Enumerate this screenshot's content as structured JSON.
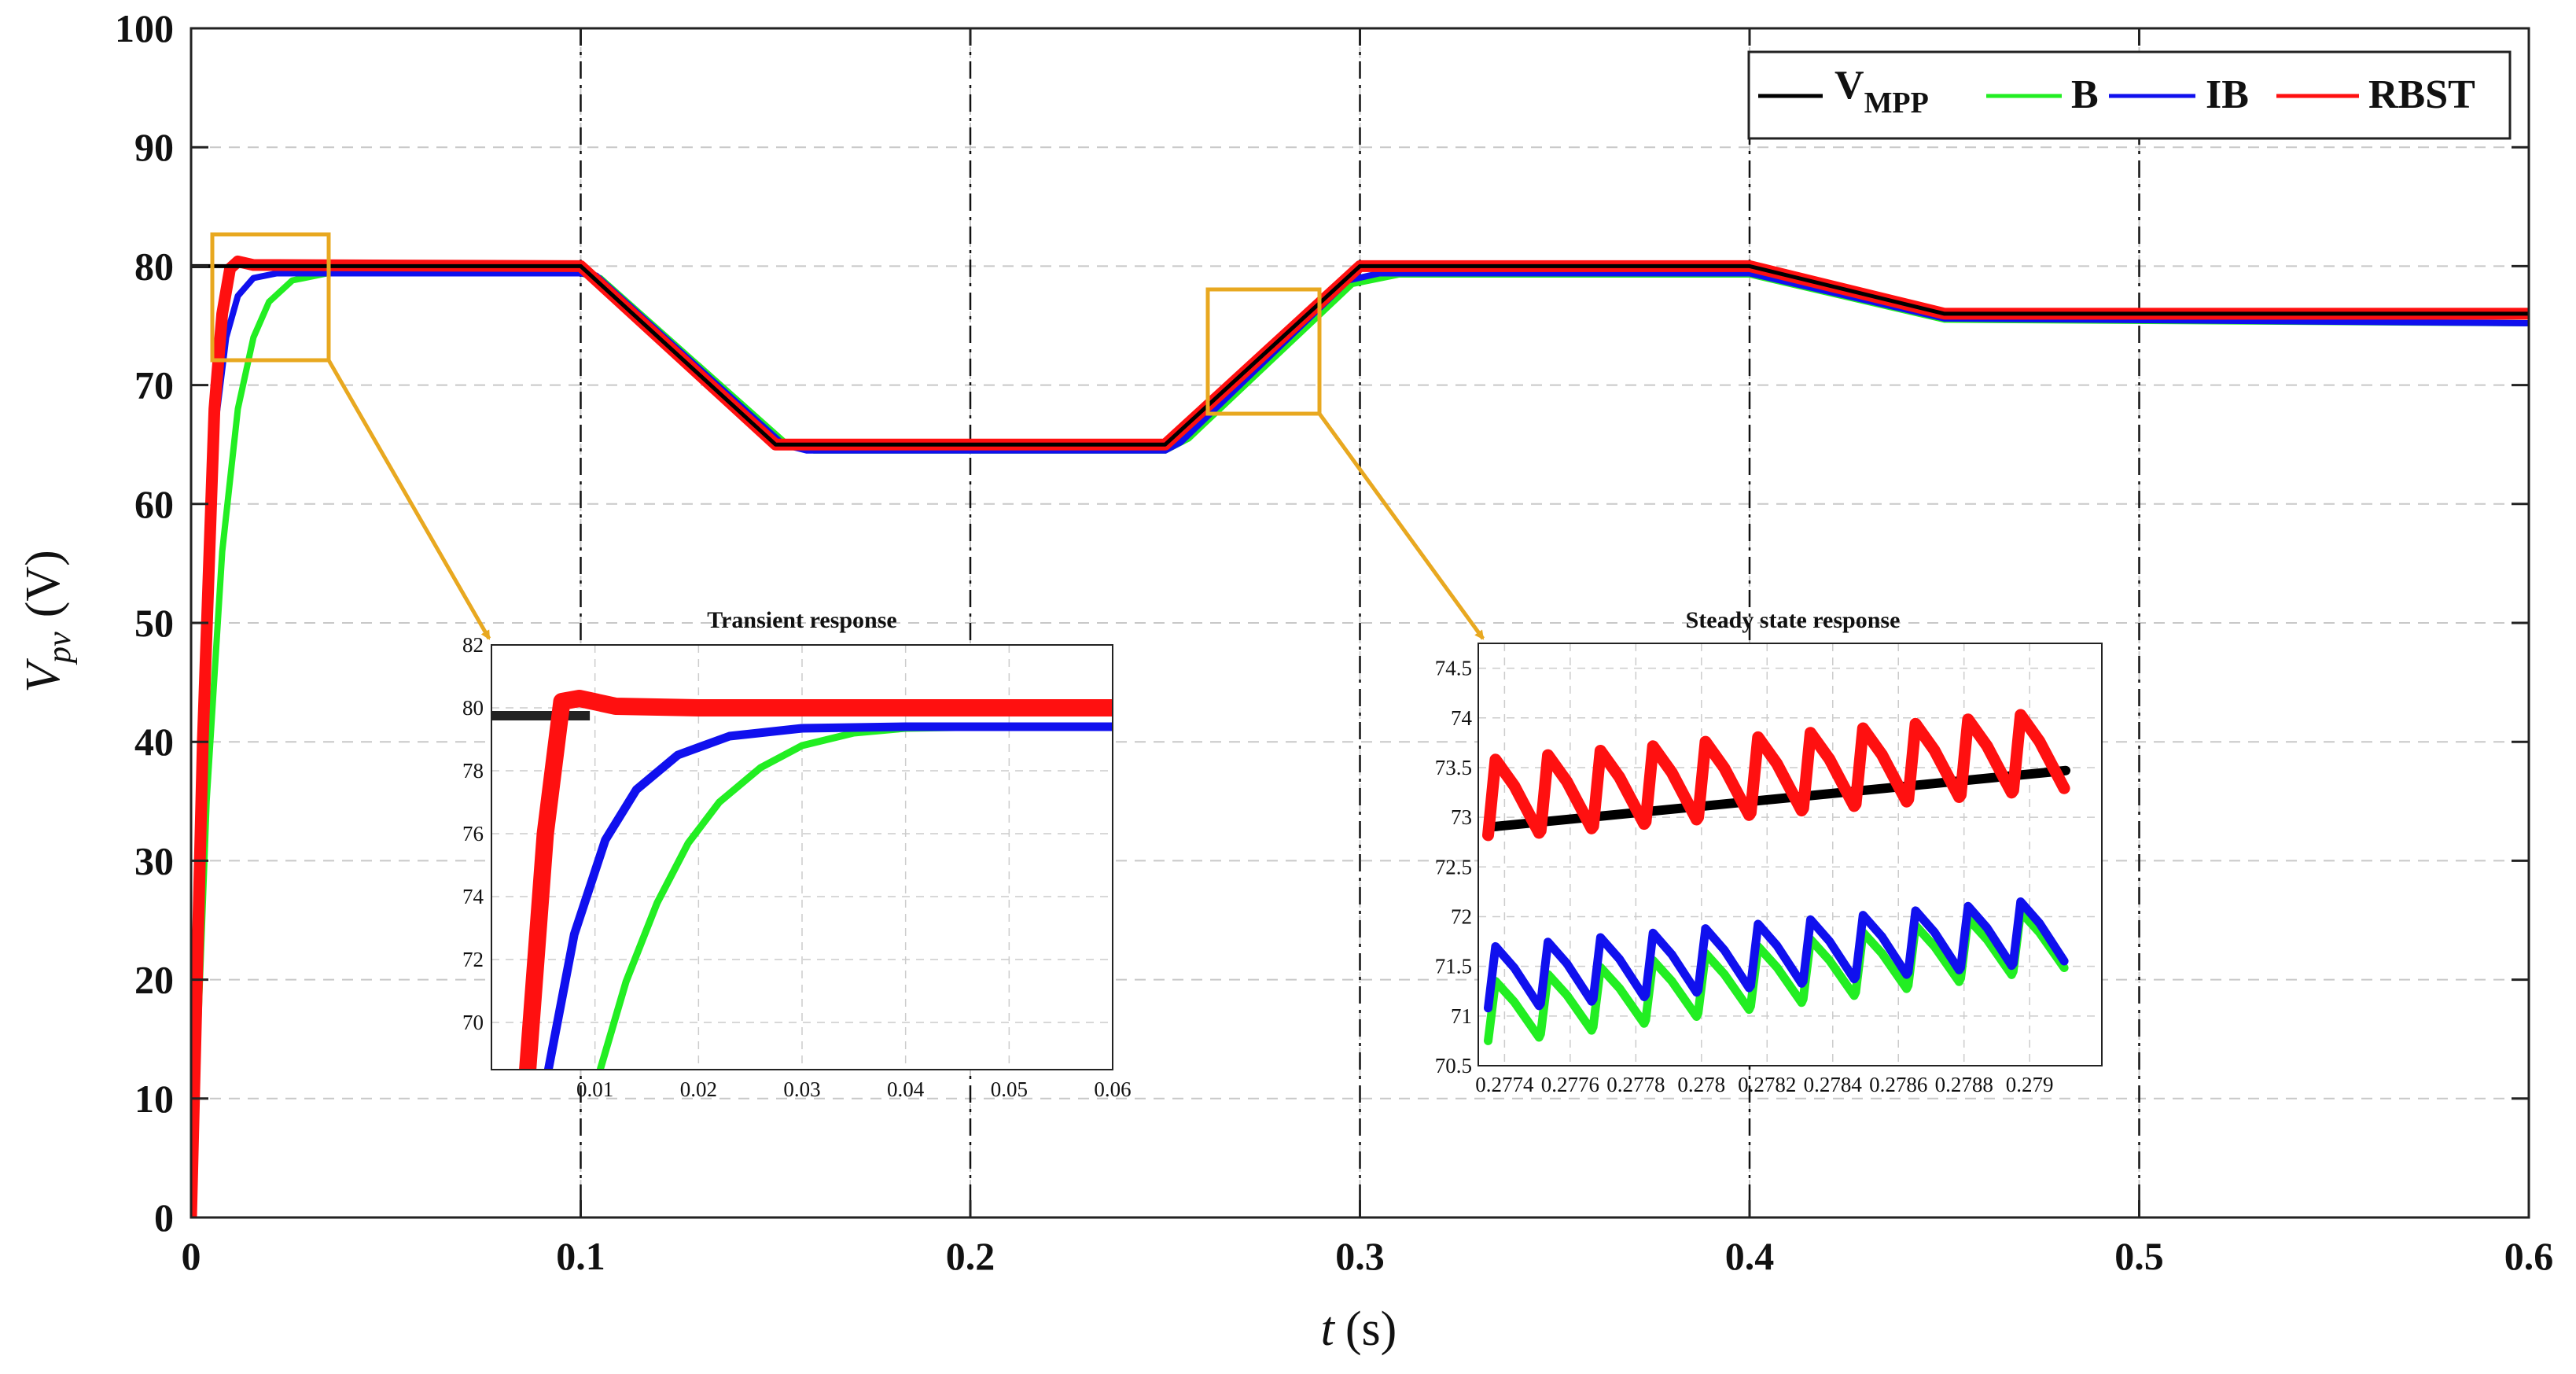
{
  "chart_data": {
    "type": "line",
    "main": {
      "xlabel_var": "t",
      "xlabel_unit": "(s)",
      "ylabel_var": "V",
      "ylabel_sub": "pv",
      "ylabel_unit": "(V)",
      "xlim": [
        0,
        0.6
      ],
      "ylim": [
        0,
        100
      ],
      "x_ticks": [
        "0",
        "0.1",
        "0.2",
        "0.3",
        "0.4",
        "0.5",
        "0.6"
      ],
      "y_ticks": [
        "0",
        "10",
        "20",
        "30",
        "40",
        "50",
        "60",
        "70",
        "80",
        "90",
        "100"
      ],
      "event_lines_x": [
        0.1,
        0.2,
        0.3,
        0.4,
        0.5
      ],
      "grid": true,
      "legend_position": "top-right",
      "series": [
        {
          "name": "VMPP",
          "color": "#000000",
          "points": [
            [
              0,
              80
            ],
            [
              0.1,
              80
            ],
            [
              0.15,
              65
            ],
            [
              0.25,
              65
            ],
            [
              0.3,
              80
            ],
            [
              0.4,
              80
            ],
            [
              0.45,
              76
            ],
            [
              0.6,
              76
            ]
          ]
        },
        {
          "name": "B",
          "color": "#22ee22",
          "points": [
            [
              0,
              0
            ],
            [
              0.004,
              35
            ],
            [
              0.008,
              56
            ],
            [
              0.012,
              68
            ],
            [
              0.016,
              74
            ],
            [
              0.02,
              77
            ],
            [
              0.026,
              78.8
            ],
            [
              0.035,
              79.4
            ],
            [
              0.1,
              79.4
            ],
            [
              0.105,
              79
            ],
            [
              0.153,
              65
            ],
            [
              0.16,
              64.5
            ],
            [
              0.25,
              64.5
            ],
            [
              0.256,
              65.5
            ],
            [
              0.298,
              78.5
            ],
            [
              0.31,
              79.3
            ],
            [
              0.4,
              79.3
            ],
            [
              0.45,
              75.5
            ],
            [
              0.6,
              75.2
            ]
          ]
        },
        {
          "name": "IB",
          "color": "#1010ee",
          "points": [
            [
              0,
              0
            ],
            [
              0.003,
              40
            ],
            [
              0.006,
              66
            ],
            [
              0.009,
              74
            ],
            [
              0.012,
              77.5
            ],
            [
              0.016,
              79
            ],
            [
              0.022,
              79.4
            ],
            [
              0.1,
              79.4
            ],
            [
              0.104,
              79.2
            ],
            [
              0.152,
              65
            ],
            [
              0.158,
              64.5
            ],
            [
              0.25,
              64.5
            ],
            [
              0.254,
              65.2
            ],
            [
              0.297,
              78.8
            ],
            [
              0.305,
              79.4
            ],
            [
              0.4,
              79.4
            ],
            [
              0.45,
              75.6
            ],
            [
              0.6,
              75.2
            ]
          ]
        },
        {
          "name": "RBST",
          "color": "#ff1010",
          "points": [
            [
              0,
              0
            ],
            [
              0.003,
              40
            ],
            [
              0.006,
              68
            ],
            [
              0.008,
              76
            ],
            [
              0.01,
              79.8
            ],
            [
              0.012,
              80.4
            ],
            [
              0.016,
              80.1
            ],
            [
              0.1,
              80
            ],
            [
              0.15,
              65
            ],
            [
              0.25,
              65
            ],
            [
              0.3,
              80
            ],
            [
              0.4,
              80
            ],
            [
              0.45,
              76
            ],
            [
              0.6,
              76
            ]
          ]
        }
      ]
    },
    "inset_transient": {
      "title": "Transient response",
      "xlim": [
        0,
        0.06
      ],
      "ylim": [
        68.5,
        82
      ],
      "x_ticks": [
        "0.01",
        "0.02",
        "0.03",
        "0.04",
        "0.05",
        "0.06"
      ],
      "x_tick_values": [
        0.01,
        0.02,
        0.03,
        0.04,
        0.05,
        0.06
      ],
      "y_ticks": [
        "70",
        "72",
        "74",
        "76",
        "78",
        "80",
        "82"
      ],
      "y_tick_values": [
        70,
        72,
        74,
        76,
        78,
        80,
        82
      ],
      "series": [
        {
          "name": "VMPP",
          "color": "#222222",
          "points": [
            [
              0,
              79.75
            ],
            [
              0.0095,
              79.75
            ]
          ]
        },
        {
          "name": "B",
          "color": "#22ee22",
          "points": [
            [
              0.0105,
              68.5
            ],
            [
              0.013,
              71.3
            ],
            [
              0.016,
              73.8
            ],
            [
              0.019,
              75.7
            ],
            [
              0.022,
              77
            ],
            [
              0.026,
              78.1
            ],
            [
              0.03,
              78.8
            ],
            [
              0.035,
              79.2
            ],
            [
              0.04,
              79.35
            ],
            [
              0.05,
              79.4
            ],
            [
              0.06,
              79.4
            ]
          ]
        },
        {
          "name": "IB",
          "color": "#1010ee",
          "points": [
            [
              0.0055,
              68.5
            ],
            [
              0.008,
              72.8
            ],
            [
              0.011,
              75.8
            ],
            [
              0.014,
              77.4
            ],
            [
              0.018,
              78.5
            ],
            [
              0.023,
              79.1
            ],
            [
              0.03,
              79.35
            ],
            [
              0.04,
              79.4
            ],
            [
              0.06,
              79.4
            ]
          ]
        },
        {
          "name": "RBST",
          "color": "#ff1010",
          "points": [
            [
              0.0035,
              68.5
            ],
            [
              0.0052,
              76
            ],
            [
              0.0068,
              80.2
            ],
            [
              0.0085,
              80.3
            ],
            [
              0.012,
              80.05
            ],
            [
              0.02,
              80
            ],
            [
              0.06,
              80
            ]
          ]
        }
      ]
    },
    "inset_steady": {
      "title": "Steady state response",
      "xlim": [
        0.27732,
        0.27922
      ],
      "ylim": [
        70.5,
        74.75
      ],
      "x_ticks": [
        "0.2774",
        "0.2776",
        "0.2778",
        "0.278",
        "0.2782",
        "0.2784",
        "0.2786",
        "0.2788",
        "0.279"
      ],
      "x_tick_values": [
        0.2774,
        0.2776,
        0.2778,
        0.278,
        0.2782,
        0.2784,
        0.2786,
        0.2788,
        0.279
      ],
      "y_ticks": [
        "70.5",
        "71",
        "71.5",
        "72",
        "72.5",
        "73",
        "73.5",
        "74",
        "74.5"
      ],
      "y_tick_values": [
        70.5,
        71,
        71.5,
        72,
        72.5,
        73,
        73.5,
        74,
        74.5
      ],
      "sawtooth_period": 0.00016,
      "sawtooth_x0": 0.27735,
      "sawtooth_cycles": 11,
      "series": [
        {
          "name": "VMPP",
          "color": "#000000",
          "y_start": 72.9,
          "y_end": 73.47
        },
        {
          "name": "B",
          "color": "#22ee22",
          "low_start": 70.75,
          "high_start": 71.35,
          "slope_per_cycle": 0.07
        },
        {
          "name": "IB",
          "color": "#1010ee",
          "low_start": 71.08,
          "high_start": 71.7,
          "slope_per_cycle": 0.045
        },
        {
          "name": "RBST",
          "color": "#ff1010",
          "low_start": 72.82,
          "high_start": 73.58,
          "slope_per_cycle": 0.045
        }
      ]
    },
    "legend": [
      {
        "label": "V",
        "sub": "MPP",
        "color": "#000000"
      },
      {
        "label": "B",
        "sub": "",
        "color": "#22ee22"
      },
      {
        "label": "IB",
        "sub": "",
        "color": "#1010ee"
      },
      {
        "label": "RBST",
        "sub": "",
        "color": "#ff1010"
      }
    ],
    "zoom_box_color": "#e8a820"
  }
}
